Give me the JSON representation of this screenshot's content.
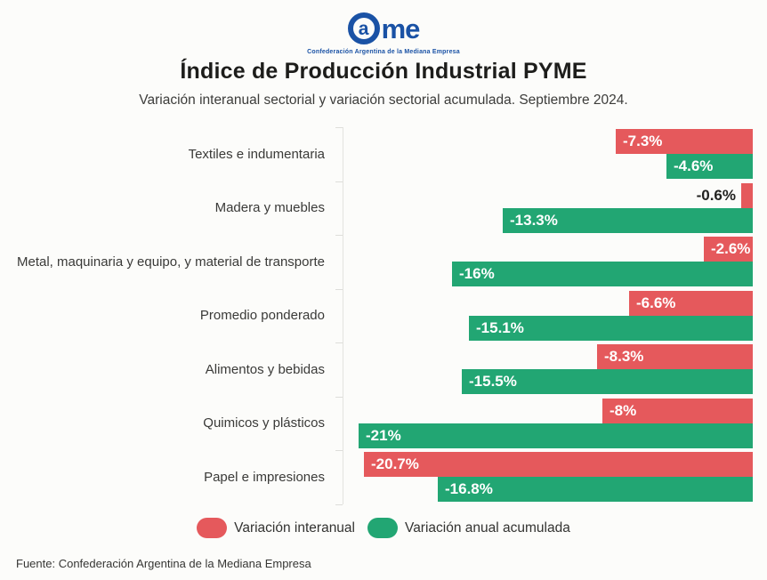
{
  "logo": {
    "brand": "Came",
    "circle_letter": "a",
    "rest": "me",
    "tagline": "Confederación Argentina de la Mediana Empresa",
    "color": "#1a52a5"
  },
  "header": {
    "title": "Índice de Producción Industrial PYME",
    "subtitle": "Variación interanual sectorial y variación sectorial acumulada. Septiembre 2024."
  },
  "chart_data": {
    "type": "bar",
    "orientation": "horizontal",
    "title": "Índice de Producción Industrial PYME",
    "subtitle": "Variación interanual sectorial y variación sectorial acumulada. Septiembre 2024.",
    "categories": [
      "Textiles e indumentaria",
      "Madera y muebles",
      "Metal, maquinaria y equipo, y material de transporte",
      "Promedio ponderado",
      "Alimentos y bebidas",
      "Quimicos y plásticos",
      "Papel e impresiones"
    ],
    "series": [
      {
        "name": "Variación interanual",
        "color": "#e5595c",
        "values": [
          -7.3,
          -0.6,
          -2.6,
          -6.6,
          -8.3,
          -8,
          -20.7
        ],
        "labels": [
          "-7.3%",
          "-0.6%",
          "-2.6%",
          "-6.6%",
          "-8.3%",
          "-8%",
          "-20.7%"
        ]
      },
      {
        "name": "Variación anual acumulada",
        "color": "#22a673",
        "values": [
          -4.6,
          -13.3,
          -16,
          -15.1,
          -15.5,
          -21,
          -16.8
        ],
        "labels": [
          "-4.6%",
          "-13.3%",
          "-16%",
          "-15.1%",
          "-15.5%",
          "-21%",
          "-16.8%"
        ]
      }
    ],
    "xlim": [
      -22,
      0
    ],
    "grid": false,
    "legend_position": "bottom",
    "value_label_style": "inside-left, outside when bar too short"
  },
  "legend": {
    "items": [
      {
        "label": "Variación interanual",
        "color": "#e5595c"
      },
      {
        "label": "Variación anual acumulada",
        "color": "#22a673"
      }
    ]
  },
  "footer": {
    "source": "Fuente: Confederación Argentina de la Mediana Empresa"
  }
}
